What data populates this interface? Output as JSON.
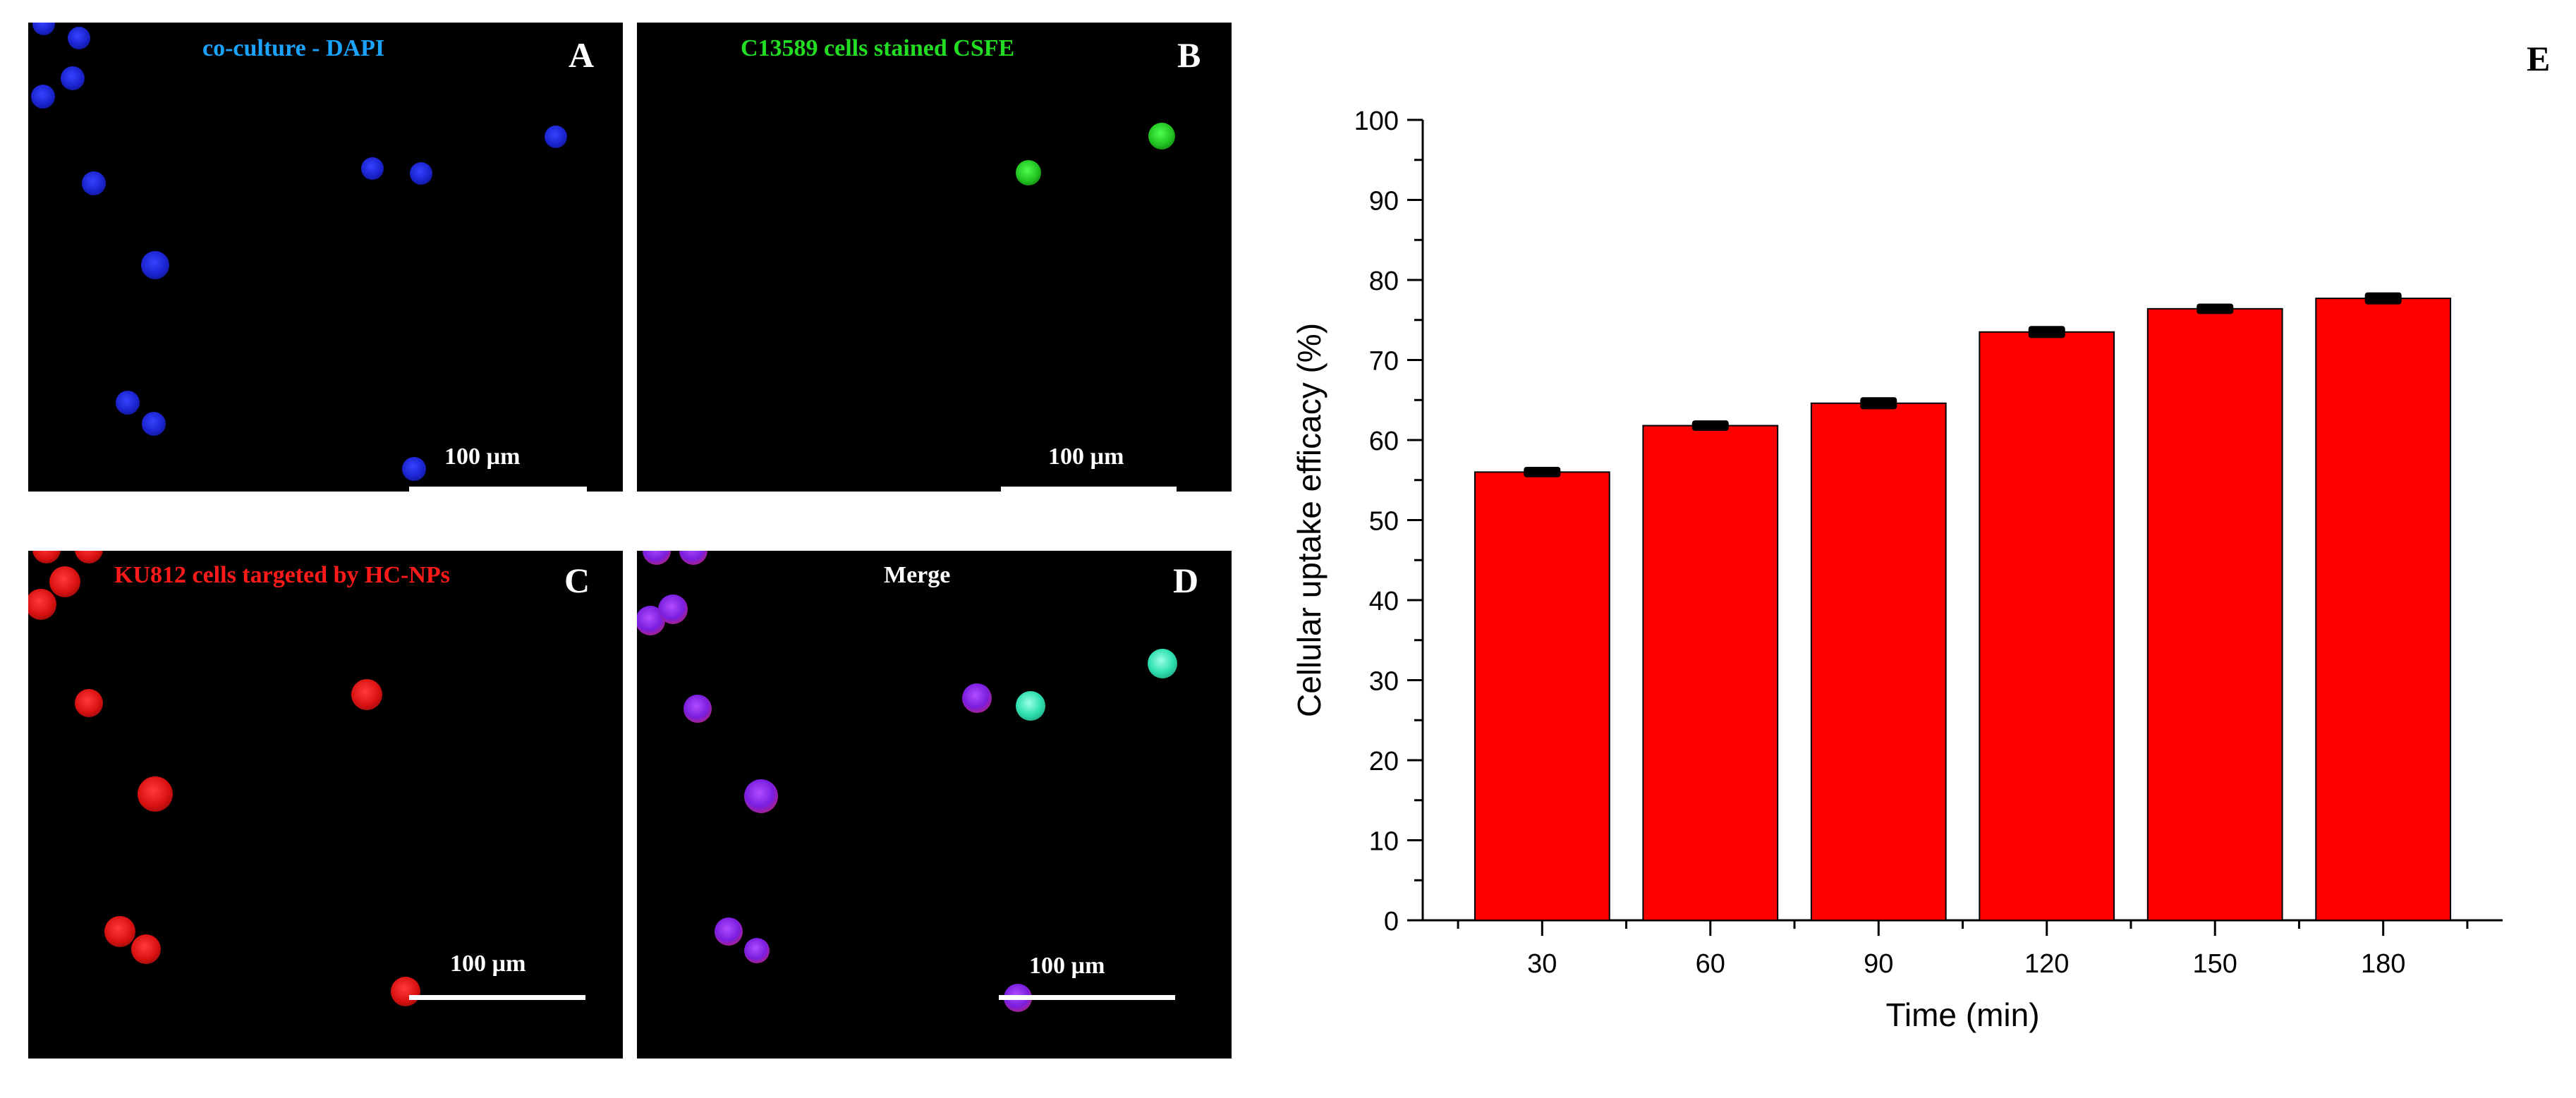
{
  "panels": {
    "a": {
      "title": "co-culture - DAPI",
      "letter": "A",
      "scale": "100 µm",
      "title_color": "#1aa3ff"
    },
    "b": {
      "title": "C13589 cells stained CSFE",
      "letter": "B",
      "scale": "100 µm",
      "title_color": "#22dd22"
    },
    "c": {
      "title": "KU812 cells targeted by HC-NPs",
      "letter": "C",
      "scale": "100 µm",
      "title_color": "#ff1a1a"
    },
    "d": {
      "title": "Merge",
      "letter": "D",
      "scale": "100 µm",
      "title_color": "#ffffff"
    }
  },
  "chart_panel_letter": "E",
  "chart_data": {
    "type": "bar",
    "categories": [
      "30",
      "60",
      "90",
      "120",
      "150",
      "180"
    ],
    "values": [
      56,
      61.8,
      64.6,
      73.5,
      76.4,
      77.7
    ],
    "errors": [
      0.3,
      0.3,
      0.4,
      0.4,
      0.3,
      0.4
    ],
    "xlabel": "Time (min)",
    "ylabel": "Cellular uptake efficacy (%)",
    "ylim": [
      0,
      100
    ],
    "yticks": [
      0,
      10,
      20,
      30,
      40,
      50,
      60,
      70,
      80,
      90,
      100
    ],
    "bar_color": "#ff0000",
    "grid": false
  }
}
